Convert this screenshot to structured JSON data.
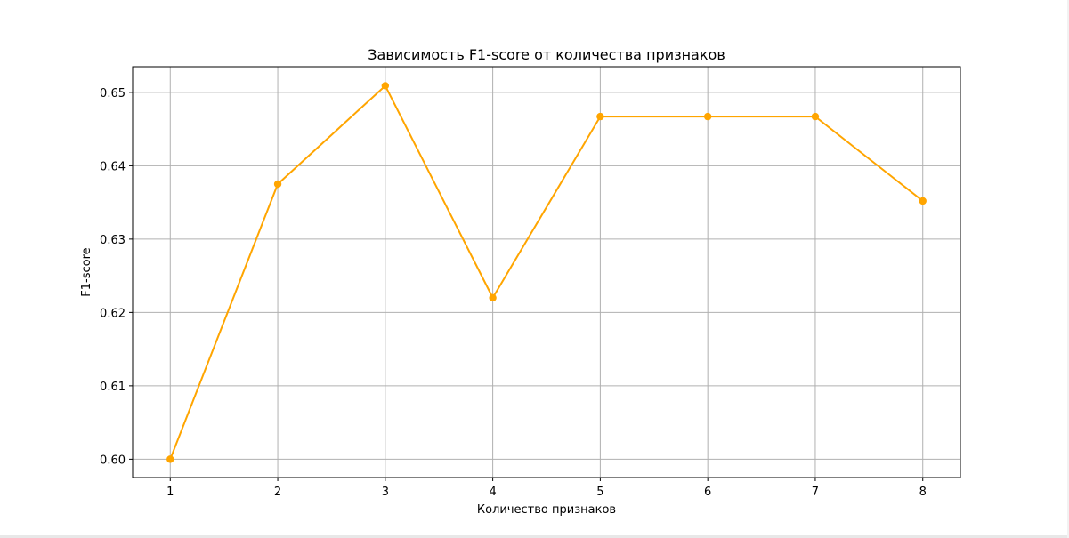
{
  "chart_data": {
    "type": "line",
    "title": "Зависимость F1-score от количества признаков",
    "xlabel": "Количество признаков",
    "ylabel": "F1-score",
    "x": [
      1,
      2,
      3,
      4,
      5,
      6,
      7,
      8
    ],
    "x_tick_labels": [
      "1",
      "2",
      "3",
      "4",
      "5",
      "6",
      "7",
      "8"
    ],
    "y_ticks": [
      0.6,
      0.61,
      0.62,
      0.63,
      0.64,
      0.65
    ],
    "y_tick_labels": [
      "0.60",
      "0.61",
      "0.62",
      "0.63",
      "0.64",
      "0.65"
    ],
    "series": [
      {
        "values": [
          0.6,
          0.6375,
          0.6509,
          0.622,
          0.6467,
          0.6467,
          0.6467,
          0.6352
        ],
        "color": "#FFA500",
        "marker": "circle"
      }
    ],
    "xlim": [
      0.65,
      8.35
    ],
    "ylim": [
      0.5975,
      0.6535
    ],
    "grid": true
  }
}
